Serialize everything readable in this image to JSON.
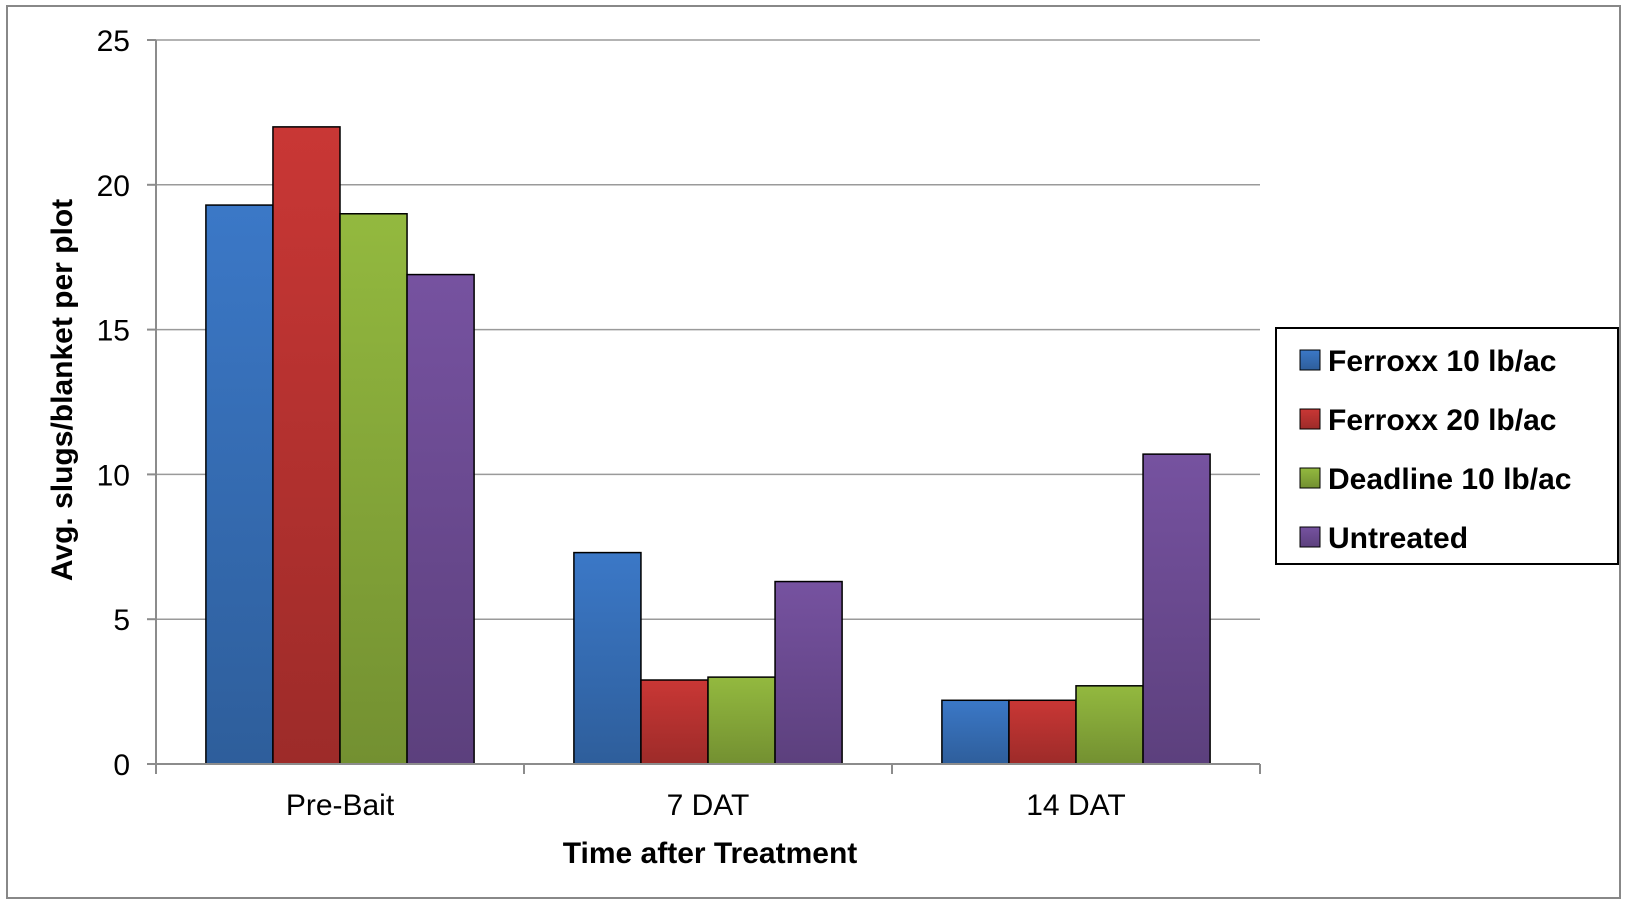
{
  "chart_data": {
    "type": "bar",
    "title": "",
    "xlabel": "Time after Treatment",
    "ylabel": "Avg. slugs/blanket per plot",
    "categories": [
      "Pre-Bait",
      "7 DAT",
      "14 DAT"
    ],
    "ylim": [
      0,
      25
    ],
    "yticks": [
      0,
      5,
      10,
      15,
      20,
      25
    ],
    "grid": true,
    "legend_position": "right",
    "series": [
      {
        "name": "Ferroxx 10 lb/ac",
        "color": "#3B78C7",
        "values": [
          19.3,
          7.3,
          2.2
        ]
      },
      {
        "name": "Ferroxx 20 lb/ac",
        "color": "#C93735",
        "values": [
          22.0,
          2.9,
          2.2
        ]
      },
      {
        "name": "Deadline 10 lb/ac",
        "color": "#93B93F",
        "values": [
          19.0,
          3.0,
          2.7
        ]
      },
      {
        "name": "Untreated",
        "color": "#7652A0",
        "values": [
          16.9,
          6.3,
          10.7
        ]
      }
    ]
  }
}
